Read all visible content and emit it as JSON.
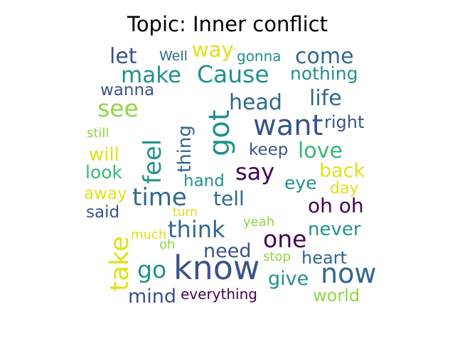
{
  "title": "Topic: Inner conflict",
  "colors": {
    "dark_purple": "#440154",
    "indigo": "#3b528b",
    "blue": "#31688e",
    "teal": "#21918c",
    "green": "#35b779",
    "light_green": "#90d743",
    "yellow": "#dde318"
  },
  "words": [
    {
      "text": "know",
      "color": "#3b528b"
    },
    {
      "text": "want",
      "color": "#3b528b"
    },
    {
      "text": "got",
      "color": "#21918c"
    },
    {
      "text": "take",
      "color": "#dde318"
    },
    {
      "text": "time",
      "color": "#31688e"
    },
    {
      "text": "now",
      "color": "#31688e"
    },
    {
      "text": "make",
      "color": "#21918c"
    },
    {
      "text": "Cause",
      "color": "#21918c"
    },
    {
      "text": "feel",
      "color": "#21918c"
    },
    {
      "text": "say",
      "color": "#440154"
    },
    {
      "text": "think",
      "color": "#31688e"
    },
    {
      "text": "one",
      "color": "#440154"
    },
    {
      "text": "come",
      "color": "#31688e"
    },
    {
      "text": "see",
      "color": "#90d743"
    },
    {
      "text": "head",
      "color": "#31688e"
    },
    {
      "text": "life",
      "color": "#31688e"
    },
    {
      "text": "love",
      "color": "#35b779"
    },
    {
      "text": "oh oh",
      "color": "#440154"
    },
    {
      "text": "go",
      "color": "#21918c"
    },
    {
      "text": "let",
      "color": "#3b528b"
    },
    {
      "text": "way",
      "color": "#dde318"
    },
    {
      "text": "tell",
      "color": "#31688e"
    },
    {
      "text": "need",
      "color": "#3b528b"
    },
    {
      "text": "give",
      "color": "#21918c"
    },
    {
      "text": "mind",
      "color": "#3b528b"
    },
    {
      "text": "back",
      "color": "#dde318"
    },
    {
      "text": "never",
      "color": "#21918c"
    },
    {
      "text": "thing",
      "color": "#31688e"
    },
    {
      "text": "nothing",
      "color": "#21918c"
    },
    {
      "text": "heart",
      "color": "#31688e"
    },
    {
      "text": "world",
      "color": "#90d743"
    },
    {
      "text": "will",
      "color": "#dde318"
    },
    {
      "text": "look",
      "color": "#35b779"
    },
    {
      "text": "eye",
      "color": "#21918c"
    },
    {
      "text": "keep",
      "color": "#3b528b"
    },
    {
      "text": "right",
      "color": "#3b528b"
    },
    {
      "text": "wanna",
      "color": "#3b528b"
    },
    {
      "text": "hand",
      "color": "#21918c"
    },
    {
      "text": "away",
      "color": "#dde318"
    },
    {
      "text": "day",
      "color": "#dde318"
    },
    {
      "text": "said",
      "color": "#3b528b"
    },
    {
      "text": "everything",
      "color": "#440154"
    },
    {
      "text": "gonna",
      "color": "#21918c"
    },
    {
      "text": "Well",
      "color": "#31688e"
    },
    {
      "text": "still",
      "color": "#90d743"
    },
    {
      "text": "turn",
      "color": "#dde318"
    },
    {
      "text": "yeah",
      "color": "#90d743"
    },
    {
      "text": "much",
      "color": "#dde318"
    },
    {
      "text": "oh",
      "color": "#90d743"
    },
    {
      "text": "stop",
      "color": "#90d743"
    }
  ]
}
